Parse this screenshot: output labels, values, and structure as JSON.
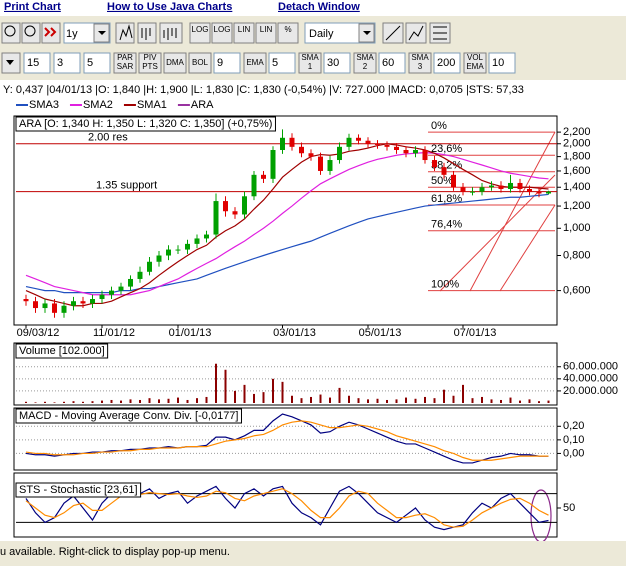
{
  "menu": [
    "Print Chart",
    "How to Use Java Charts",
    "Detach Window"
  ],
  "toolbar": {
    "period": "1y",
    "scale_buttons": [
      "LOG",
      "LOG",
      "LIN",
      "LIN",
      "%"
    ],
    "interval": "Daily",
    "indicators": [
      {
        "input": "15"
      },
      {
        "input": "3"
      },
      {
        "input": "5"
      },
      {
        "button": [
          "PAR",
          "SAR"
        ]
      },
      {
        "button": [
          "PIV",
          "PTS"
        ]
      },
      {
        "button": [
          "DMA"
        ]
      },
      {
        "button": [
          "BOL"
        ]
      },
      {
        "input": "9"
      },
      {
        "button": [
          "EMA"
        ]
      },
      {
        "input": "5"
      },
      {
        "button": [
          "SMA",
          "1"
        ]
      },
      {
        "input": "30"
      },
      {
        "button": [
          "SMA",
          "2"
        ]
      },
      {
        "input": "60"
      },
      {
        "button": [
          "SMA",
          "3"
        ]
      },
      {
        "input": "200"
      },
      {
        "button": [
          "VOL",
          "EMA"
        ]
      },
      {
        "input": "10"
      }
    ]
  },
  "info": "Y: 0,437 |04/01/13 |O: 1,840 |H: 1,900 |L: 1,830 |C: 1,830 (-0,54%) |V: 727.000 |MACD: 0,0705 |STS: 57,33",
  "chart_data": [
    {
      "type": "candlestick",
      "title": "ARA [O: 1,340  H: 1,350  L: 1,320  C: 1,350] (+0,75%)",
      "name": "ARA",
      "color": "#9932a0",
      "up_color": "#00a000",
      "down_color": "#e00000",
      "log_scale": true,
      "categories": [
        "09/03/12",
        null,
        null,
        null,
        null,
        null,
        null,
        null,
        "11/01/12",
        null,
        null,
        null,
        null,
        null,
        null,
        null,
        "01/01/13",
        null,
        null,
        null,
        null,
        null,
        null,
        null,
        null,
        null,
        null,
        "03/01/13",
        null,
        null,
        null,
        null,
        null,
        null,
        null,
        null,
        "05/01/13",
        null,
        null,
        null,
        null,
        null,
        null,
        null,
        null,
        null,
        "07/01/13",
        null,
        null,
        null,
        null,
        null,
        null,
        null,
        null,
        null
      ],
      "open": [
        0.56,
        0.55,
        0.52,
        0.54,
        0.5,
        0.53,
        0.55,
        0.54,
        0.56,
        0.58,
        0.6,
        0.62,
        0.66,
        0.7,
        0.76,
        0.8,
        0.84,
        0.84,
        0.88,
        0.92,
        0.95,
        1.25,
        1.15,
        1.12,
        1.3,
        1.55,
        1.5,
        1.9,
        2.1,
        1.95,
        1.85,
        1.8,
        1.6,
        1.75,
        1.95,
        2.1,
        2.05,
        2.0,
        1.98,
        1.95,
        1.9,
        1.85,
        1.9,
        1.75,
        1.65,
        1.55,
        1.4,
        1.35,
        1.35,
        1.4,
        1.42,
        1.38,
        1.45,
        1.38,
        1.35,
        1.33
      ],
      "high": [
        0.58,
        0.57,
        0.56,
        0.56,
        0.55,
        0.57,
        0.57,
        0.58,
        0.6,
        0.62,
        0.64,
        0.68,
        0.73,
        0.79,
        0.83,
        0.87,
        0.87,
        0.91,
        0.95,
        0.98,
        1.33,
        1.3,
        1.19,
        1.35,
        1.6,
        1.6,
        1.96,
        2.25,
        2.18,
        2.02,
        1.91,
        1.86,
        1.81,
        2.02,
        2.17,
        2.16,
        2.11,
        2.06,
        2.04,
        2.01,
        1.96,
        1.96,
        1.96,
        1.81,
        1.71,
        1.6,
        1.45,
        1.4,
        1.45,
        1.47,
        1.47,
        1.55,
        1.5,
        1.42,
        1.39,
        1.36
      ],
      "low": [
        0.53,
        0.5,
        0.5,
        0.48,
        0.48,
        0.51,
        0.52,
        0.52,
        0.54,
        0.56,
        0.58,
        0.6,
        0.64,
        0.68,
        0.73,
        0.77,
        0.81,
        0.81,
        0.85,
        0.89,
        0.92,
        1.1,
        1.08,
        1.08,
        1.26,
        1.45,
        1.45,
        1.84,
        1.89,
        1.79,
        1.74,
        1.55,
        1.55,
        1.7,
        1.89,
        1.99,
        1.94,
        1.92,
        1.89,
        1.84,
        1.79,
        1.79,
        1.7,
        1.6,
        1.5,
        1.36,
        1.31,
        1.31,
        1.31,
        1.36,
        1.34,
        1.34,
        1.34,
        1.31,
        1.29,
        1.32
      ],
      "close": [
        0.55,
        0.52,
        0.54,
        0.5,
        0.53,
        0.55,
        0.54,
        0.56,
        0.58,
        0.6,
        0.62,
        0.66,
        0.7,
        0.76,
        0.8,
        0.84,
        0.84,
        0.88,
        0.92,
        0.95,
        1.25,
        1.15,
        1.12,
        1.3,
        1.55,
        1.5,
        1.9,
        2.1,
        1.95,
        1.85,
        1.8,
        1.6,
        1.75,
        1.95,
        2.1,
        2.05,
        2.0,
        1.98,
        1.95,
        1.9,
        1.85,
        1.9,
        1.75,
        1.65,
        1.55,
        1.4,
        1.35,
        1.35,
        1.4,
        1.42,
        1.38,
        1.45,
        1.38,
        1.35,
        1.33,
        1.35
      ],
      "series": [
        {
          "name": "SMA3",
          "color": "#2050c0",
          "values": [
            0.62,
            0.61,
            0.6,
            0.6,
            0.59,
            0.59,
            0.59,
            0.59,
            0.59,
            0.59,
            0.6,
            0.6,
            0.61,
            0.61,
            0.62,
            0.63,
            0.64,
            0.65,
            0.66,
            0.68,
            0.7,
            0.72,
            0.74,
            0.76,
            0.78,
            0.8,
            0.82,
            0.84,
            0.86,
            0.88,
            0.9,
            0.93,
            0.96,
            0.99,
            1.02,
            1.05,
            1.08,
            1.1,
            1.12,
            1.14,
            1.16,
            1.18,
            1.2,
            1.21,
            1.22,
            1.23,
            1.24,
            1.25,
            1.26,
            1.27,
            1.28,
            1.29,
            1.29,
            1.3,
            1.31,
            1.32
          ]
        },
        {
          "name": "SMA2",
          "color": "#e020e0",
          "values": [
            0.68,
            0.66,
            0.64,
            0.62,
            0.61,
            0.6,
            0.59,
            0.58,
            0.58,
            0.58,
            0.58,
            0.58,
            0.59,
            0.6,
            0.62,
            0.64,
            0.66,
            0.69,
            0.72,
            0.75,
            0.78,
            0.82,
            0.86,
            0.9,
            0.95,
            1.0,
            1.06,
            1.13,
            1.2,
            1.28,
            1.36,
            1.44,
            1.5,
            1.56,
            1.62,
            1.67,
            1.72,
            1.76,
            1.79,
            1.82,
            1.84,
            1.85,
            1.86,
            1.85,
            1.83,
            1.8,
            1.76,
            1.72,
            1.68,
            1.64,
            1.6,
            1.57,
            1.55,
            1.53,
            1.51,
            1.5
          ]
        },
        {
          "name": "SMA1",
          "color": "#a00000",
          "values": [
            0.6,
            0.58,
            0.56,
            0.55,
            0.54,
            0.53,
            0.53,
            0.54,
            0.54,
            0.55,
            0.57,
            0.59,
            0.61,
            0.64,
            0.68,
            0.72,
            0.76,
            0.8,
            0.84,
            0.87,
            0.93,
            0.98,
            1.02,
            1.08,
            1.17,
            1.26,
            1.38,
            1.52,
            1.62,
            1.72,
            1.8,
            1.83,
            1.82,
            1.84,
            1.88,
            1.9,
            1.93,
            1.97,
            2.0,
            1.98,
            1.95,
            1.93,
            1.9,
            1.85,
            1.78,
            1.7,
            1.62,
            1.55,
            1.48,
            1.44,
            1.41,
            1.4,
            1.4,
            1.4,
            1.39,
            1.38
          ]
        }
      ],
      "annotations": [
        {
          "text": "2.00 res",
          "value": 2.0
        },
        {
          "text": "1.35  support",
          "value": 1.35
        }
      ],
      "annotation_color": "#c00000",
      "fibonacci": [
        {
          "value": 2.2,
          "label": "0%"
        },
        {
          "value": 1.82,
          "label": "23,6%"
        },
        {
          "value": 1.59,
          "label": "38,2%"
        },
        {
          "value": 1.4,
          "label": "50%"
        },
        {
          "value": 1.21,
          "label": "61,8%"
        },
        {
          "value": 0.98,
          "label": "76,4%"
        },
        {
          "value": 0.6,
          "label": "100%"
        }
      ],
      "ylim": [
        0.46,
        2.47
      ],
      "yticks": [
        {
          "value": 0.6,
          "label": "0,600"
        },
        {
          "value": 0.8,
          "label": "0,800"
        },
        {
          "value": 1.0,
          "label": "1,000"
        },
        {
          "value": 1.2,
          "label": "1,200"
        },
        {
          "value": 1.4,
          "label": "1,400"
        },
        {
          "value": 1.6,
          "label": "1,600"
        },
        {
          "value": 1.8,
          "label": "1,800"
        },
        {
          "value": 2.0,
          "label": "2,000"
        },
        {
          "value": 2.2,
          "label": "2,200"
        }
      ]
    },
    {
      "type": "bar",
      "title": "Volume [102.000]",
      "color": "#8b0000",
      "grid": true,
      "values": [
        2000000,
        1000000,
        2000000,
        1000000,
        2000000,
        3000000,
        2000000,
        3000000,
        4000000,
        5000000,
        4000000,
        6000000,
        5000000,
        8000000,
        6000000,
        7000000,
        9000000,
        5000000,
        8000000,
        10000000,
        65000000,
        55000000,
        20000000,
        30000000,
        15000000,
        18000000,
        40000000,
        35000000,
        12000000,
        8000000,
        10000000,
        14000000,
        9000000,
        25000000,
        12000000,
        8000000,
        6000000,
        7000000,
        5000000,
        6000000,
        9000000,
        7000000,
        10000000,
        8000000,
        22000000,
        12000000,
        30000000,
        8000000,
        10000000,
        6000000,
        5000000,
        9000000,
        4000000,
        6000000,
        3000000,
        4000000
      ],
      "ylim": [
        0,
        96000000
      ],
      "yticks": [
        {
          "value": 20000000,
          "label": "20.000.000"
        },
        {
          "value": 40000000,
          "label": "40.000.000"
        },
        {
          "value": 60000000,
          "label": "60.000.000"
        }
      ]
    },
    {
      "type": "line",
      "title": "MACD - Moving Average Conv. Div. [-0,0177]",
      "grid": true,
      "series": [
        {
          "color": "#000080",
          "values": [
            0.0,
            -0.01,
            -0.01,
            -0.02,
            -0.01,
            0.0,
            0.0,
            0.01,
            0.01,
            0.02,
            0.02,
            0.03,
            0.03,
            0.04,
            0.04,
            0.05,
            0.04,
            0.05,
            0.05,
            0.06,
            0.12,
            0.12,
            0.1,
            0.13,
            0.17,
            0.17,
            0.24,
            0.29,
            0.27,
            0.24,
            0.21,
            0.15,
            0.16,
            0.2,
            0.23,
            0.21,
            0.18,
            0.15,
            0.12,
            0.09,
            0.07,
            0.07,
            0.04,
            0.01,
            -0.02,
            -0.05,
            -0.07,
            -0.07,
            -0.05,
            -0.03,
            -0.02,
            0.0,
            -0.01,
            -0.01,
            -0.02,
            -0.02
          ]
        },
        {
          "color": "#ff8c00",
          "values": [
            0.01,
            0.0,
            0.0,
            -0.01,
            -0.01,
            -0.01,
            0.0,
            0.0,
            0.01,
            0.01,
            0.02,
            0.02,
            0.03,
            0.03,
            0.04,
            0.04,
            0.04,
            0.05,
            0.05,
            0.05,
            0.07,
            0.09,
            0.1,
            0.11,
            0.13,
            0.14,
            0.17,
            0.21,
            0.23,
            0.24,
            0.23,
            0.21,
            0.19,
            0.19,
            0.2,
            0.21,
            0.2,
            0.18,
            0.16,
            0.13,
            0.11,
            0.09,
            0.07,
            0.05,
            0.02,
            0.0,
            -0.03,
            -0.05,
            -0.05,
            -0.05,
            -0.04,
            -0.03,
            -0.02,
            -0.02,
            -0.02,
            -0.02
          ]
        }
      ],
      "ylim": [
        -0.1,
        0.32
      ],
      "yticks": [
        {
          "value": 0,
          "label": "0,00"
        },
        {
          "value": 0.1,
          "label": "0,10"
        },
        {
          "value": 0.2,
          "label": "0,20"
        }
      ]
    },
    {
      "type": "line",
      "title": "STS - Stochastic [23,61]",
      "levels": [
        20,
        80
      ],
      "series": [
        {
          "color": "#000080",
          "values": [
            70,
            40,
            20,
            30,
            60,
            75,
            50,
            25,
            60,
            80,
            85,
            75,
            80,
            90,
            70,
            80,
            85,
            60,
            75,
            85,
            95,
            70,
            50,
            80,
            90,
            75,
            90,
            95,
            60,
            40,
            30,
            15,
            50,
            85,
            95,
            80,
            60,
            40,
            30,
            20,
            35,
            50,
            25,
            10,
            5,
            10,
            15,
            40,
            60,
            50,
            70,
            80,
            60,
            40,
            20,
            24
          ]
        },
        {
          "color": "#ff8c00",
          "values": [
            65,
            50,
            35,
            30,
            40,
            55,
            60,
            45,
            45,
            60,
            75,
            80,
            78,
            82,
            80,
            78,
            80,
            75,
            72,
            75,
            85,
            82,
            70,
            65,
            75,
            80,
            85,
            90,
            80,
            65,
            45,
            30,
            30,
            50,
            75,
            85,
            80,
            60,
            45,
            30,
            30,
            35,
            38,
            30,
            15,
            10,
            12,
            25,
            40,
            50,
            60,
            68,
            70,
            60,
            45,
            35
          ]
        }
      ],
      "ylim": [
        0,
        100
      ],
      "yticks": [
        50
      ]
    }
  ],
  "status": "u available. Right-click to display pop-up menu."
}
